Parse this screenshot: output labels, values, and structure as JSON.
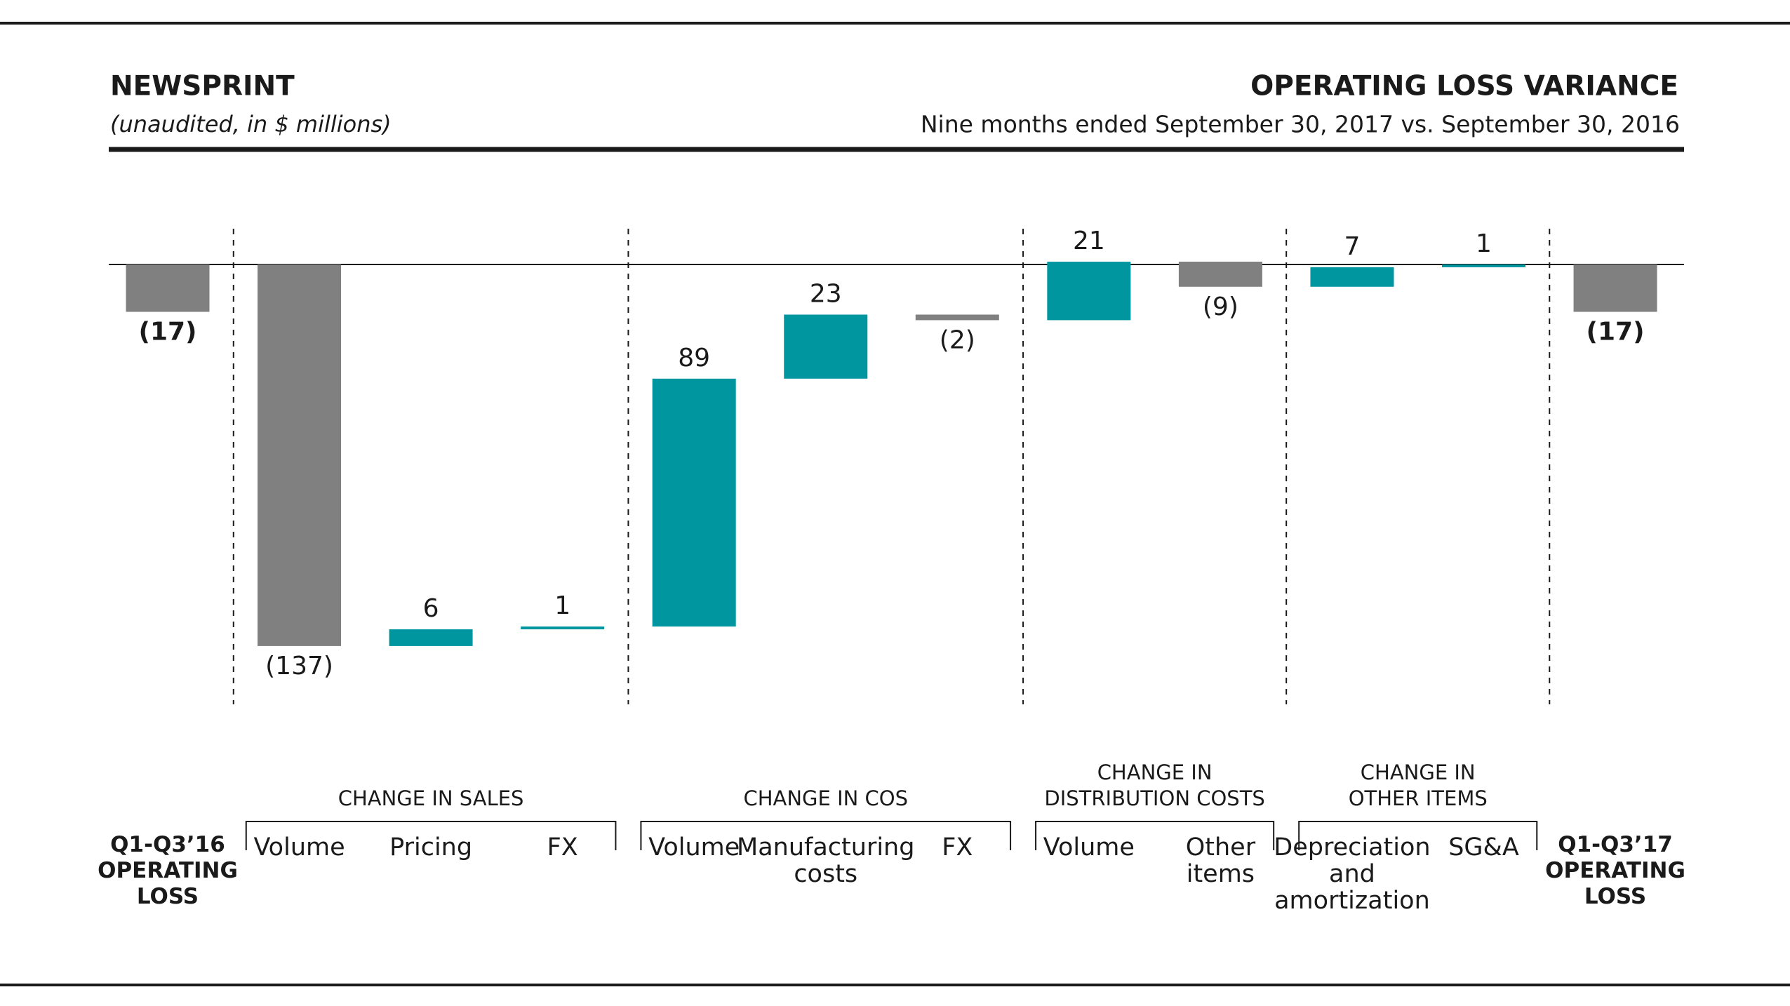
{
  "chart_data": {
    "type": "waterfall",
    "title": "NEWSPRINT",
    "subtitle": "(unaudited, in $ millions)",
    "right_title": "OPERATING LOSS VARIANCE",
    "right_subtitle": "Nine months ended September 30, 2017 vs. September 30, 2016",
    "categories": [
      "Q1-Q3’16\nOPERATING\nLOSS",
      "Volume",
      "Pricing",
      "FX",
      "Volume",
      "Manufacturing\ncosts",
      "FX",
      "Volume",
      "Other\nitems",
      "Depreciation\nand\namortization",
      "SG&A",
      "Q1-Q3’17\nOPERATING\nLOSS"
    ],
    "values": [
      -17,
      -137,
      6,
      1,
      89,
      23,
      -2,
      21,
      -9,
      7,
      1,
      -17
    ],
    "value_labels": [
      "(17)",
      "(137)",
      "6",
      "1",
      "89",
      "23",
      "(2)",
      "21",
      "(9)",
      "7",
      "1",
      "(17)"
    ],
    "is_total": [
      true,
      false,
      false,
      false,
      false,
      false,
      false,
      false,
      false,
      false,
      false,
      true
    ],
    "groups": [
      {
        "label": "CHANGE IN SALES",
        "first": 1,
        "last": 3
      },
      {
        "label": "CHANGE IN COS",
        "first": 4,
        "last": 6
      },
      {
        "label": "CHANGE IN\nDISTRIBUTION COSTS",
        "first": 7,
        "last": 8
      },
      {
        "label": "CHANGE IN\nOTHER ITEMS",
        "first": 9,
        "last": 10
      }
    ],
    "positive_color": "#0096a0",
    "negative_color": "#808080",
    "total_color": "#808080"
  }
}
